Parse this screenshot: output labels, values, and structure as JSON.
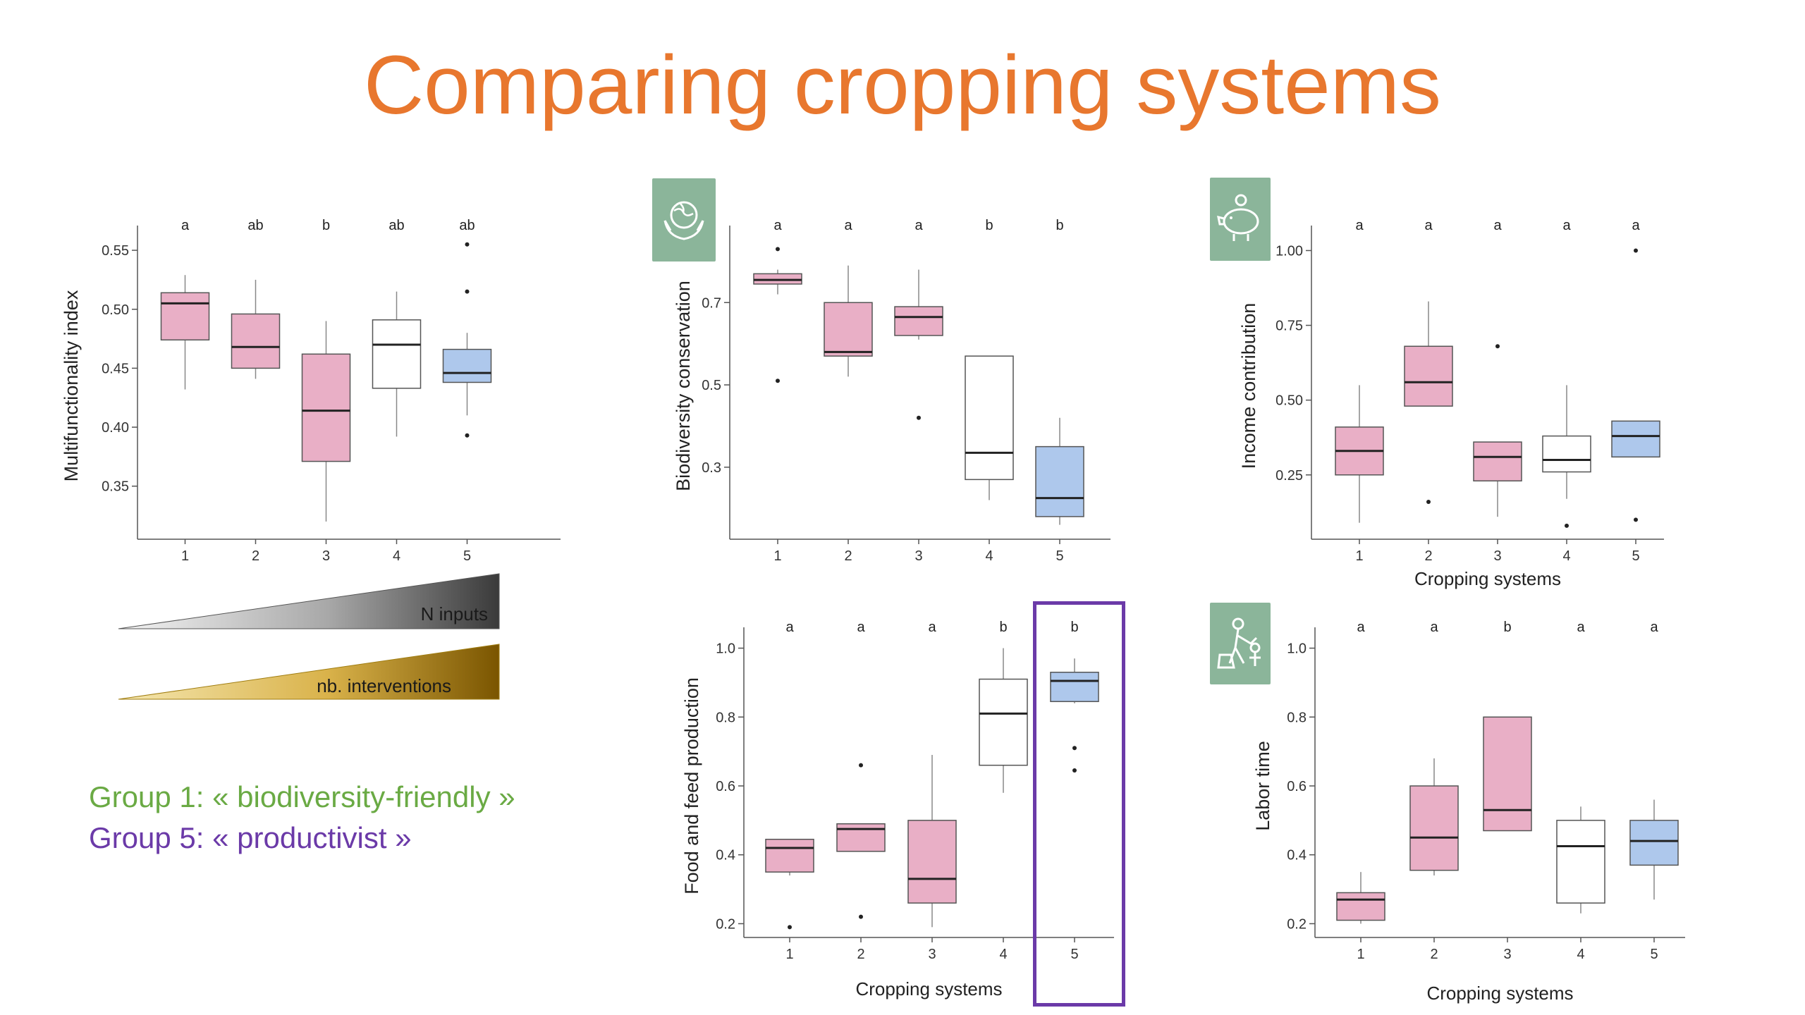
{
  "slide": {
    "title": "Comparing cropping systems"
  },
  "colors": {
    "title": "#e8772e",
    "pink": "#e9afc6",
    "white": "#ffffff",
    "blue": "#aec8ec",
    "group1": "#6aaa44",
    "group5": "#6b3aa8",
    "icon_tile": "#8bb59a"
  },
  "gradients": {
    "n_inputs": "N inputs",
    "interventions": "nb. interventions"
  },
  "groups": [
    {
      "text": "Group 1: « biodiversity-friendly »",
      "color": "#6aaa44"
    },
    {
      "text": "Group 5: « productivist »",
      "color": "#6b3aa8"
    }
  ],
  "icons": [
    "globe-in-hands-icon",
    "piggy-bank-icon",
    "farmer-labor-icon"
  ],
  "chart_data": [
    {
      "id": "multifunctionality",
      "type": "box",
      "ylabel": "Multifunctionality index",
      "xlabel": "",
      "categories": [
        "1",
        "2",
        "3",
        "4",
        "5"
      ],
      "ylim": [
        0.305,
        0.565
      ],
      "yticks": [
        0.35,
        0.4,
        0.45,
        0.5,
        0.55
      ],
      "ytick_labels": [
        "0.35",
        "0.40",
        "0.45",
        "0.50",
        "0.55"
      ],
      "letters": [
        "a",
        "ab",
        "b",
        "ab",
        "ab"
      ],
      "fills": [
        "pink",
        "pink",
        "pink",
        "white",
        "blue"
      ],
      "boxes": [
        {
          "lo": 0.432,
          "q1": 0.474,
          "med": 0.505,
          "q3": 0.514,
          "hi": 0.529,
          "out": []
        },
        {
          "lo": 0.441,
          "q1": 0.45,
          "med": 0.468,
          "q3": 0.496,
          "hi": 0.525,
          "out": []
        },
        {
          "lo": 0.32,
          "q1": 0.371,
          "med": 0.414,
          "q3": 0.462,
          "hi": 0.49,
          "out": []
        },
        {
          "lo": 0.392,
          "q1": 0.433,
          "med": 0.47,
          "q3": 0.491,
          "hi": 0.515,
          "out": []
        },
        {
          "lo": 0.41,
          "q1": 0.438,
          "med": 0.446,
          "q3": 0.466,
          "hi": 0.48,
          "out": [
            0.393,
            0.515,
            0.555
          ]
        }
      ]
    },
    {
      "id": "biodiversity",
      "type": "box",
      "ylabel": "Biodiversity conservation",
      "xlabel": "",
      "categories": [
        "1",
        "2",
        "3",
        "4",
        "5"
      ],
      "ylim": [
        0.125,
        0.87
      ],
      "yticks": [
        0.3,
        0.5,
        0.7
      ],
      "ytick_labels": [
        "0.3",
        "0.5",
        "0.7"
      ],
      "letters": [
        "a",
        "a",
        "a",
        "b",
        "b"
      ],
      "fills": [
        "pink",
        "pink",
        "pink",
        "white",
        "blue"
      ],
      "boxes": [
        {
          "lo": 0.72,
          "q1": 0.745,
          "med": 0.755,
          "q3": 0.77,
          "hi": 0.78,
          "out": [
            0.51,
            0.83
          ]
        },
        {
          "lo": 0.52,
          "q1": 0.57,
          "med": 0.58,
          "q3": 0.7,
          "hi": 0.79,
          "out": []
        },
        {
          "lo": 0.61,
          "q1": 0.62,
          "med": 0.665,
          "q3": 0.69,
          "hi": 0.78,
          "out": [
            0.42
          ]
        },
        {
          "lo": 0.22,
          "q1": 0.27,
          "med": 0.335,
          "q3": 0.57,
          "hi": 0.57,
          "out": []
        },
        {
          "lo": 0.16,
          "q1": 0.18,
          "med": 0.225,
          "q3": 0.35,
          "hi": 0.42,
          "out": []
        }
      ]
    },
    {
      "id": "income",
      "type": "box",
      "ylabel": "Income contribution",
      "xlabel": "Cropping systems",
      "categories": [
        "1",
        "2",
        "3",
        "4",
        "5"
      ],
      "ylim": [
        0.035,
        1.06
      ],
      "yticks": [
        0.25,
        0.5,
        0.75,
        1.0
      ],
      "ytick_labels": [
        "0.25",
        "0.50",
        "0.75",
        "1.00"
      ],
      "letters": [
        "a",
        "a",
        "a",
        "a",
        "a"
      ],
      "fills": [
        "pink",
        "pink",
        "pink",
        "white",
        "blue"
      ],
      "boxes": [
        {
          "lo": 0.09,
          "q1": 0.25,
          "med": 0.33,
          "q3": 0.41,
          "hi": 0.55,
          "out": []
        },
        {
          "lo": 0.48,
          "q1": 0.48,
          "med": 0.56,
          "q3": 0.68,
          "hi": 0.83,
          "out": [
            0.16
          ]
        },
        {
          "lo": 0.11,
          "q1": 0.23,
          "med": 0.31,
          "q3": 0.36,
          "hi": 0.36,
          "out": [
            0.68
          ]
        },
        {
          "lo": 0.17,
          "q1": 0.26,
          "med": 0.3,
          "q3": 0.38,
          "hi": 0.55,
          "out": [
            0.08
          ]
        },
        {
          "lo": 0.31,
          "q1": 0.31,
          "med": 0.38,
          "q3": 0.43,
          "hi": 0.43,
          "out": [
            0.1,
            1.0
          ]
        }
      ]
    },
    {
      "id": "food_feed",
      "type": "box",
      "ylabel": "Food and feed production",
      "xlabel": "Cropping systems",
      "categories": [
        "1",
        "2",
        "3",
        "4",
        "5"
      ],
      "ylim": [
        0.16,
        1.04
      ],
      "yticks": [
        0.2,
        0.4,
        0.6,
        0.8,
        1.0
      ],
      "ytick_labels": [
        "0.2",
        "0.4",
        "0.6",
        "0.8",
        "1.0"
      ],
      "letters": [
        "a",
        "a",
        "a",
        "b",
        "b"
      ],
      "fills": [
        "pink",
        "pink",
        "pink",
        "white",
        "blue"
      ],
      "boxes": [
        {
          "lo": 0.34,
          "q1": 0.35,
          "med": 0.42,
          "q3": 0.445,
          "hi": 0.445,
          "out": [
            0.19
          ]
        },
        {
          "lo": 0.41,
          "q1": 0.41,
          "med": 0.475,
          "q3": 0.49,
          "hi": 0.49,
          "out": [
            0.22,
            0.66
          ]
        },
        {
          "lo": 0.19,
          "q1": 0.26,
          "med": 0.33,
          "q3": 0.5,
          "hi": 0.69,
          "out": []
        },
        {
          "lo": 0.58,
          "q1": 0.66,
          "med": 0.81,
          "q3": 0.91,
          "hi": 1.0,
          "out": []
        },
        {
          "lo": 0.84,
          "q1": 0.845,
          "med": 0.905,
          "q3": 0.93,
          "hi": 0.97,
          "out": [
            0.645,
            0.71
          ]
        }
      ]
    },
    {
      "id": "labor",
      "type": "box",
      "ylabel": "Labor time",
      "xlabel": "Cropping systems",
      "categories": [
        "1",
        "2",
        "3",
        "4",
        "5"
      ],
      "ylim": [
        0.16,
        1.04
      ],
      "yticks": [
        0.2,
        0.4,
        0.6,
        0.8,
        1.0
      ],
      "ytick_labels": [
        "0.2",
        "0.4",
        "0.6",
        "0.8",
        "1.0"
      ],
      "letters": [
        "a",
        "a",
        "b",
        "a",
        "a"
      ],
      "fills": [
        "pink",
        "pink",
        "pink",
        "white",
        "blue"
      ],
      "boxes": [
        {
          "lo": 0.2,
          "q1": 0.21,
          "med": 0.27,
          "q3": 0.29,
          "hi": 0.35,
          "out": []
        },
        {
          "lo": 0.34,
          "q1": 0.355,
          "med": 0.45,
          "q3": 0.6,
          "hi": 0.68,
          "out": []
        },
        {
          "lo": 0.47,
          "q1": 0.47,
          "med": 0.53,
          "q3": 0.8,
          "hi": 0.8,
          "out": []
        },
        {
          "lo": 0.23,
          "q1": 0.26,
          "med": 0.425,
          "q3": 0.5,
          "hi": 0.54,
          "out": []
        },
        {
          "lo": 0.27,
          "q1": 0.37,
          "med": 0.44,
          "q3": 0.5,
          "hi": 0.56,
          "out": []
        }
      ]
    }
  ]
}
